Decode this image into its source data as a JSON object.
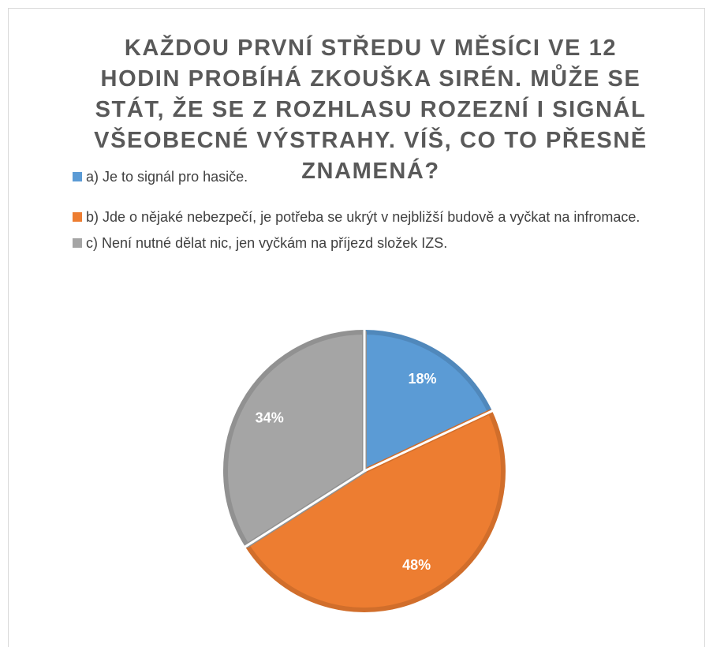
{
  "chart_data": {
    "type": "pie",
    "title": "KAŽDOU PRVNÍ STŘEDU V MĚSÍCI VE 12 HODIN PROBÍHÁ ZKOUŠKA SIRÉN. MŮŽE SE STÁT, ŽE SE Z ROZHLASU ROZEZNÍ I SIGNÁL VŠEOBECNÉ VÝSTRAHY. VÍŠ, CO TO PŘESNĚ ZNAMENÁ?",
    "categories": [
      "a) Je to signál pro hasiče.",
      "b) Jde o nějaké nebezpečí, je potřeba se ukrýt v nejbližší budově a vyčkat na infromace.",
      "c) Není nutné dělat nic, jen vyčkám na příjezd složek IZS."
    ],
    "values": [
      18,
      48,
      34
    ],
    "value_labels": [
      "18%",
      "48%",
      "34%"
    ],
    "colors": [
      "#5b9bd5",
      "#ed7d31",
      "#a5a5a5"
    ],
    "legend": "top"
  }
}
